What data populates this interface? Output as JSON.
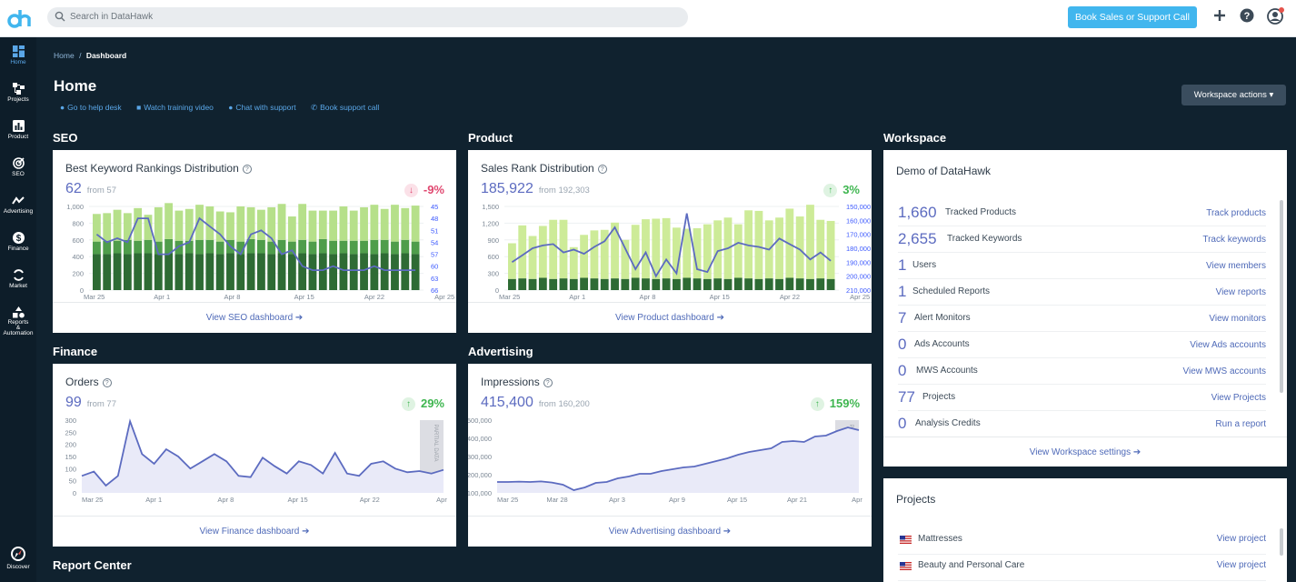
{
  "search": {
    "placeholder": "Search in DataHawk"
  },
  "topbar": {
    "book_button": "Book Sales or Support Call"
  },
  "sidebar": {
    "items": [
      {
        "label": "Home",
        "icon": "dashboard-icon"
      },
      {
        "label": "Projects",
        "icon": "projects-icon"
      },
      {
        "label": "Product",
        "icon": "bar-chart-icon"
      },
      {
        "label": "SEO",
        "icon": "target-icon"
      },
      {
        "label": "Advertising",
        "icon": "trend-icon"
      },
      {
        "label": "Finance",
        "icon": "dollar-icon"
      },
      {
        "label": "Market",
        "icon": "cycle-icon"
      },
      {
        "label": "Reports",
        "label2": "&",
        "label3": "Automation",
        "icon": "shapes-icon"
      },
      {
        "label": "Discover",
        "icon": "compass-icon"
      }
    ]
  },
  "breadcrumb": {
    "home": "Home",
    "sep": "/",
    "current": "Dashboard"
  },
  "page": {
    "title": "Home",
    "workspace_actions": "Workspace actions ▾"
  },
  "help_links": [
    "Go to help desk",
    "Watch training video",
    "Chat with support",
    "Book support call"
  ],
  "sections": {
    "seo": "SEO",
    "product": "Product",
    "workspace": "Workspace",
    "finance": "Finance",
    "advertising": "Advertising",
    "report_center": "Report Center"
  },
  "cards": {
    "seo": {
      "title": "Best Keyword Rankings Distribution",
      "value": "62",
      "from": "from 57",
      "delta": "-9%",
      "link": "View SEO dashboard ➔"
    },
    "product": {
      "title": "Sales Rank Distribution",
      "value": "185,922",
      "from": "from 192,303",
      "delta": "3%",
      "link": "View Product dashboard ➔"
    },
    "finance": {
      "title": "Orders",
      "value": "99",
      "from": "from 77",
      "delta": "29%",
      "link": "View Finance dashboard ➔"
    },
    "advertising": {
      "title": "Impressions",
      "value": "415,400",
      "from": "from 160,200",
      "delta": "159%",
      "link": "View Advertising dashboard ➔"
    }
  },
  "workspace": {
    "name": "Demo of DataHawk",
    "rows": [
      {
        "num": "1,660",
        "label": "Tracked Products",
        "link": "Track products"
      },
      {
        "num": "2,655",
        "label": "Tracked Keywords",
        "link": "Track keywords"
      },
      {
        "num": "1",
        "label": "Users",
        "link": "View members"
      },
      {
        "num": "1",
        "label": "Scheduled Reports",
        "link": "View reports"
      },
      {
        "num": "7",
        "label": "Alert Monitors",
        "link": "View monitors"
      },
      {
        "num": "0",
        "label": "Ads Accounts",
        "link": "View Ads accounts"
      },
      {
        "num": "0",
        "label": "MWS Accounts",
        "link": "View MWS accounts"
      },
      {
        "num": "77",
        "label": "Projects",
        "link": "View Projects"
      },
      {
        "num": "0",
        "label": "Analysis Credits",
        "link": "Run a report"
      }
    ],
    "settings_link": "View Workspace settings ➔"
  },
  "projects": {
    "title": "Projects",
    "rows": [
      {
        "label": "Mattresses",
        "link": "View project"
      },
      {
        "label": "Beauty and Personal Care",
        "link": "View project"
      }
    ]
  },
  "colors": {
    "brand": "#41b6ee",
    "accent": "#5c6bc0",
    "up": "#3fb650",
    "down": "#e04870",
    "bg": "#10222f"
  },
  "chart_data": [
    {
      "type": "bar",
      "name": "seo",
      "x_tick_labels": [
        "Mar 25",
        "Apr 1",
        "Apr 8",
        "Apr 15",
        "Apr 22",
        "Apr 25"
      ],
      "y_ticks": [
        0,
        200,
        400,
        600,
        800,
        1000
      ],
      "y2_ticks": [
        45,
        48,
        51,
        54,
        57,
        60,
        63,
        66
      ],
      "ylim": [
        0,
        1000
      ],
      "y2lim": [
        45,
        66
      ],
      "series": [
        {
          "values": [
            430,
            430,
            440,
            430,
            440,
            440,
            430,
            440,
            430,
            440,
            430,
            440,
            430,
            440,
            430,
            440,
            440,
            430,
            440,
            430,
            440,
            430,
            440,
            430,
            440,
            430,
            440,
            430,
            440,
            430,
            440,
            430
          ]
        },
        {
          "values": [
            150,
            160,
            150,
            170,
            150,
            160,
            150,
            170,
            160,
            150,
            170,
            160,
            150,
            160,
            150,
            170,
            160,
            150,
            160,
            150,
            160,
            150,
            170,
            160,
            150,
            160,
            150,
            170,
            160,
            150,
            160,
            150
          ]
        },
        {
          "values": [
            330,
            330,
            370,
            320,
            390,
            300,
            410,
            430,
            360,
            380,
            420,
            400,
            360,
            330,
            420,
            380,
            360,
            410,
            430,
            300,
            430,
            370,
            340,
            360,
            410,
            360,
            400,
            420,
            370,
            440,
            380,
            430
          ]
        },
        {
          "values": [
            52,
            54,
            53,
            54,
            48,
            48,
            57,
            57,
            55,
            54,
            48,
            50,
            52,
            55,
            57,
            52,
            51,
            53,
            57,
            56,
            60,
            61,
            61,
            60,
            61,
            61,
            61,
            60,
            61,
            61,
            61,
            61
          ]
        }
      ]
    },
    {
      "type": "bar",
      "name": "product",
      "x_tick_labels": [
        "Mar 25",
        "Apr 1",
        "Apr 8",
        "Apr 15",
        "Apr 22",
        "Apr 25"
      ],
      "y_ticks": [
        0,
        300,
        600,
        900,
        1200,
        1500
      ],
      "y2_ticks": [
        150000,
        160000,
        170000,
        180000,
        190000,
        200000,
        210000
      ],
      "ylim": [
        0,
        1500
      ],
      "y2lim": [
        150000,
        210000
      ],
      "series": [
        {
          "values": [
            200,
            210,
            200,
            220,
            200,
            210,
            200,
            220,
            210,
            200,
            210,
            200,
            220,
            210,
            200,
            210,
            200,
            220,
            210,
            200,
            210,
            200,
            220,
            210,
            200,
            210,
            200,
            220,
            210,
            200,
            210,
            200
          ]
        },
        {
          "values": [
            640,
            950,
            770,
            930,
            1060,
            1050,
            570,
            770,
            860,
            880,
            1000,
            700,
            950,
            1060,
            1080,
            1080,
            920,
            880,
            900,
            980,
            1040,
            1100,
            960,
            1220,
            1220,
            1040,
            1100,
            1240,
            1110,
            1330,
            1050,
            1040
          ]
        },
        {
          "values": [
            190000,
            185000,
            180000,
            178000,
            177000,
            183000,
            181000,
            184000,
            179000,
            175000,
            165000,
            180000,
            195000,
            183000,
            200000,
            188000,
            198000,
            155000,
            195000,
            197000,
            182000,
            180000,
            176000,
            178000,
            179000,
            181000,
            173000,
            177000,
            181000,
            188000,
            183000,
            189000
          ]
        }
      ]
    },
    {
      "type": "area",
      "name": "finance",
      "x_tick_labels": [
        "Mar 25",
        "Apr 1",
        "Apr 8",
        "Apr 15",
        "Apr 22",
        "Apr"
      ],
      "y_ticks": [
        0,
        50,
        100,
        150,
        200,
        250,
        300
      ],
      "ylim": [
        0,
        300
      ],
      "values": [
        70,
        88,
        30,
        70,
        295,
        160,
        120,
        180,
        150,
        100,
        130,
        160,
        130,
        70,
        65,
        145,
        110,
        80,
        130,
        115,
        80,
        165,
        80,
        70,
        120,
        130,
        100,
        85,
        90,
        80,
        95
      ],
      "annotation": "PARTIAL DATA"
    },
    {
      "type": "area",
      "name": "advertising",
      "x_tick_labels": [
        "Mar 25",
        "Mar 28",
        "Apr 3",
        "Apr 9",
        "Apr 15",
        "Apr 21",
        "Apr"
      ],
      "y_ticks": [
        100000,
        200000,
        300000,
        400000,
        500000
      ],
      "ylim": [
        100000,
        500000
      ],
      "values": [
        160000,
        160000,
        162000,
        160000,
        163000,
        157000,
        145000,
        115000,
        130000,
        155000,
        160000,
        180000,
        190000,
        205000,
        205000,
        220000,
        230000,
        240000,
        245000,
        260000,
        275000,
        290000,
        310000,
        325000,
        335000,
        345000,
        380000,
        385000,
        380000,
        410000,
        415000,
        440000,
        460000,
        445000
      ],
      "annotation": "PARTIAL DATA"
    }
  ]
}
